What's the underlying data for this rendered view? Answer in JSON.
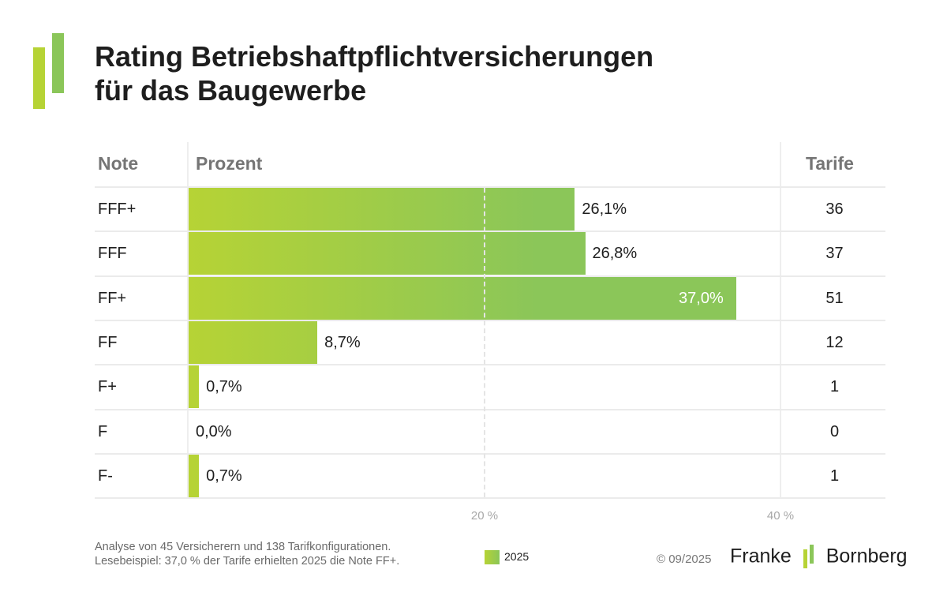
{
  "title_lines": [
    "Rating Betriebshaftpflichtversicherungen",
    "für das Baugewerbe"
  ],
  "colors": {
    "bar_gradient_start": "#b6d335",
    "bar_gradient_end": "#8bc659",
    "logo_green_light": "#b6d335",
    "logo_green": "#8bc659"
  },
  "columns": {
    "note": "Note",
    "percent": "Prozent",
    "tarife": "Tarife"
  },
  "chart_data": {
    "type": "bar",
    "orientation": "horizontal",
    "categories": [
      "FFF+",
      "FFF",
      "FF+",
      "FF",
      "F+",
      "F",
      "F-"
    ],
    "series": [
      {
        "name": "2025",
        "values": [
          26.1,
          26.8,
          37.0,
          8.7,
          0.7,
          0.0,
          0.7
        ]
      }
    ],
    "value_labels": [
      "26,1%",
      "26,8%",
      "37,0%",
      "8,7%",
      "0,7%",
      "0,0%",
      "0,7%"
    ],
    "tarife": [
      "36",
      "37",
      "51",
      "12",
      "1",
      "0",
      "1"
    ],
    "xlim": [
      0,
      40
    ],
    "x_ticks": [
      20,
      40
    ],
    "x_tick_labels": [
      "20 %",
      "40 %"
    ],
    "grid": "dashed vertical at 20",
    "legend": "bottom-center"
  },
  "footnote_lines": [
    "Analyse von 45 Versicherern und 138 Tarifkonfigurationen.",
    "Lesebeispiel: 37,0 % der Tarife erhielten 2025 die Note FF+."
  ],
  "legend_label": "2025",
  "copyright": "© 09/2025",
  "brand": {
    "left": "Franke",
    "right": "Bornberg"
  }
}
